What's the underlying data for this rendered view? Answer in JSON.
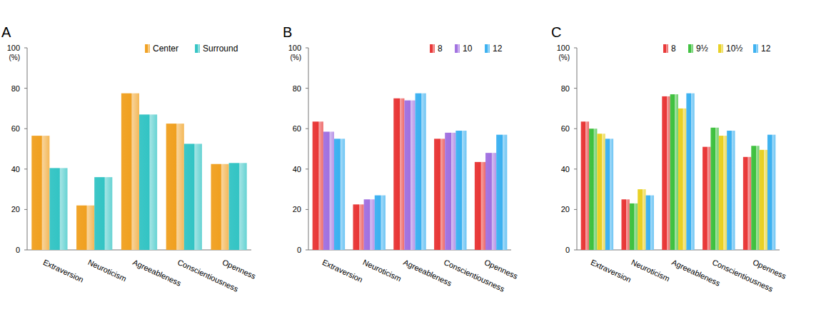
{
  "chart_data": [
    {
      "type": "bar",
      "title": "A",
      "y_label": "(%)",
      "categories": [
        "Extraversion",
        "Neuroticism",
        "Agreeableness",
        "Conscientiousness",
        "Openness"
      ],
      "series": [
        {
          "name": "Center",
          "color": "#f0a020",
          "values": [
            56.5,
            22,
            77.5,
            62.5,
            42.5
          ]
        },
        {
          "name": "Surround",
          "color": "#33c4c4",
          "values": [
            40.5,
            36,
            67,
            52.5,
            43
          ]
        }
      ],
      "ylim": [
        0,
        100
      ],
      "yticks": [
        0,
        20,
        40,
        60,
        80,
        100
      ],
      "legend": "top-right"
    },
    {
      "type": "bar",
      "title": "B",
      "y_label": "(%)",
      "categories": [
        "Extraversion",
        "Neuroticism",
        "Agreeableness",
        "Conscientiousness",
        "Openness"
      ],
      "series": [
        {
          "name": "8",
          "color": "#e83535",
          "values": [
            63.5,
            22.5,
            75,
            55,
            43.5
          ]
        },
        {
          "name": "10",
          "color": "#a070e0",
          "values": [
            58.5,
            25,
            74,
            58,
            48
          ]
        },
        {
          "name": "12",
          "color": "#3ab0f0",
          "values": [
            55,
            27,
            77.5,
            59,
            57
          ]
        }
      ],
      "ylim": [
        0,
        100
      ],
      "yticks": [
        0,
        20,
        40,
        60,
        80,
        100
      ],
      "legend": "top-right"
    },
    {
      "type": "bar",
      "title": "C",
      "y_label": "(%)",
      "categories": [
        "Extraversion",
        "Neuroticism",
        "Agreeableness",
        "Conscientiousness",
        "Openness"
      ],
      "series": [
        {
          "name": "8",
          "color": "#e83535",
          "values": [
            63.5,
            25,
            76,
            51,
            46
          ]
        },
        {
          "name": "9½",
          "color": "#3cc03c",
          "values": [
            60,
            23,
            77,
            60.5,
            51.5
          ]
        },
        {
          "name": "10½",
          "color": "#e8d020",
          "values": [
            57.5,
            30,
            70,
            56.5,
            49.5
          ]
        },
        {
          "name": "12",
          "color": "#3ab0f0",
          "values": [
            55,
            27,
            77.5,
            59,
            57
          ]
        }
      ],
      "ylim": [
        0,
        100
      ],
      "yticks": [
        0,
        20,
        40,
        60,
        80,
        100
      ],
      "legend": "top-right"
    }
  ]
}
